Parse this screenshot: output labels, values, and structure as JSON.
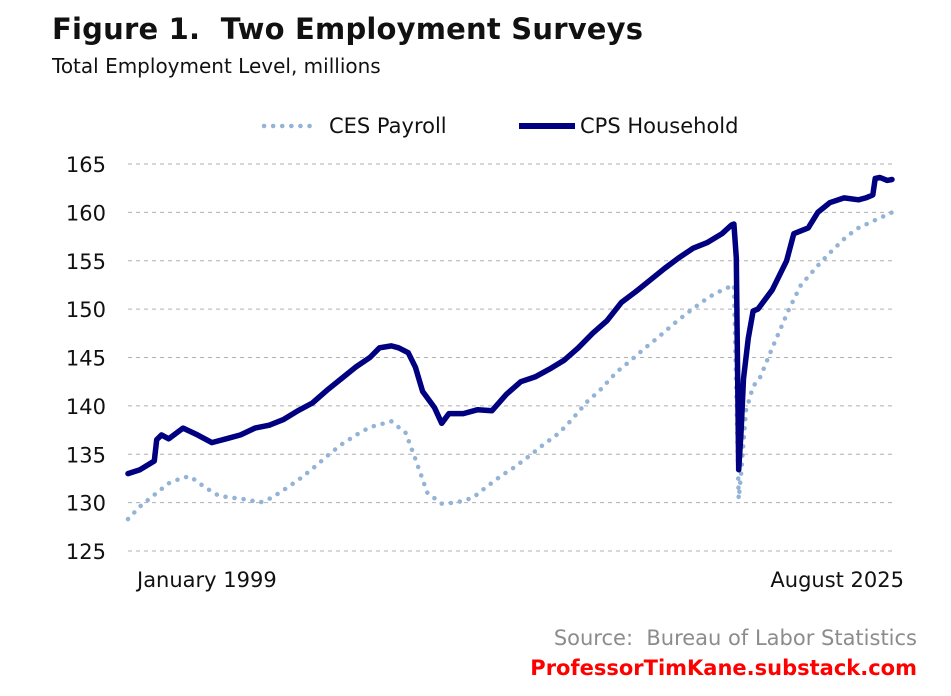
{
  "header": {
    "title": "Figure 1.  Two Employment Surveys",
    "subtitle": "Total Employment Level, millions"
  },
  "footer": {
    "source": "Source:  Bureau of Labor Statistics",
    "brand": "ProfessorTimKane.substack.com"
  },
  "colors": {
    "ces": "#93b3d7",
    "cps": "#000080",
    "grid": "#b0b0b0",
    "brand": "#ff0000",
    "source": "#8c8c8c"
  },
  "chart_data": {
    "type": "line",
    "title": "Figure 1.  Two Employment Surveys",
    "subtitle": "Total Employment Level, millions",
    "x_labels": {
      "start": "January 1999",
      "end": "August 2025"
    },
    "x_range": [
      "1999-01",
      "2025-08"
    ],
    "ylim": [
      125,
      165
    ],
    "yticks": [
      125,
      130,
      135,
      140,
      145,
      150,
      155,
      160,
      165
    ],
    "grid": "horizontal dashed",
    "legend_position": "top-center",
    "series": [
      {
        "name": "CES Payroll",
        "style": "dotted",
        "points": [
          [
            "1999-01",
            128.3
          ],
          [
            "1999-06",
            129.6
          ],
          [
            "2000-01",
            131.0
          ],
          [
            "2000-06",
            132.0
          ],
          [
            "2000-12",
            132.6
          ],
          [
            "2001-03",
            132.7
          ],
          [
            "2001-09",
            131.6
          ],
          [
            "2002-03",
            130.7
          ],
          [
            "2002-09",
            130.5
          ],
          [
            "2003-03",
            130.3
          ],
          [
            "2003-08",
            130.0
          ],
          [
            "2004-01",
            130.5
          ],
          [
            "2004-06",
            131.3
          ],
          [
            "2005-01",
            132.5
          ],
          [
            "2005-06",
            133.5
          ],
          [
            "2006-01",
            135.0
          ],
          [
            "2006-06",
            136.0
          ],
          [
            "2007-01",
            137.1
          ],
          [
            "2007-06",
            137.8
          ],
          [
            "2007-12",
            138.2
          ],
          [
            "2008-03",
            138.4
          ],
          [
            "2008-09",
            137.2
          ],
          [
            "2009-01",
            134.5
          ],
          [
            "2009-06",
            131.0
          ],
          [
            "2009-12",
            129.9
          ],
          [
            "2010-06",
            130.0
          ],
          [
            "2011-01",
            130.5
          ],
          [
            "2011-06",
            131.5
          ],
          [
            "2012-01",
            132.8
          ],
          [
            "2012-06",
            133.6
          ],
          [
            "2013-01",
            134.9
          ],
          [
            "2013-06",
            135.9
          ],
          [
            "2014-01",
            137.2
          ],
          [
            "2014-06",
            138.5
          ],
          [
            "2015-01",
            140.5
          ],
          [
            "2015-06",
            141.6
          ],
          [
            "2016-01",
            143.5
          ],
          [
            "2016-06",
            144.5
          ],
          [
            "2017-01",
            146.0
          ],
          [
            "2017-06",
            147.0
          ],
          [
            "2018-01",
            148.5
          ],
          [
            "2018-06",
            149.5
          ],
          [
            "2019-01",
            150.8
          ],
          [
            "2019-06",
            151.6
          ],
          [
            "2020-02",
            152.5
          ],
          [
            "2020-04",
            130.4
          ],
          [
            "2020-05",
            133.0
          ],
          [
            "2020-07",
            139.5
          ],
          [
            "2020-10",
            142.0
          ],
          [
            "2021-01",
            143.0
          ],
          [
            "2021-06",
            146.0
          ],
          [
            "2022-01",
            150.0
          ],
          [
            "2022-06",
            152.5
          ],
          [
            "2023-01",
            154.5
          ],
          [
            "2023-06",
            155.8
          ],
          [
            "2024-01",
            157.5
          ],
          [
            "2024-06",
            158.4
          ],
          [
            "2025-01",
            159.2
          ],
          [
            "2025-08",
            160.0
          ]
        ]
      },
      {
        "name": "CPS Household",
        "style": "solid",
        "points": [
          [
            "1999-01",
            133.0
          ],
          [
            "1999-06",
            133.4
          ],
          [
            "1999-12",
            134.3
          ],
          [
            "2000-01",
            136.5
          ],
          [
            "2000-03",
            137.0
          ],
          [
            "2000-06",
            136.6
          ],
          [
            "2000-12",
            137.7
          ],
          [
            "2001-06",
            137.0
          ],
          [
            "2001-12",
            136.2
          ],
          [
            "2002-06",
            136.6
          ],
          [
            "2002-12",
            137.0
          ],
          [
            "2003-06",
            137.7
          ],
          [
            "2003-12",
            138.0
          ],
          [
            "2004-06",
            138.6
          ],
          [
            "2004-12",
            139.5
          ],
          [
            "2005-06",
            140.3
          ],
          [
            "2005-12",
            141.6
          ],
          [
            "2006-06",
            142.8
          ],
          [
            "2006-12",
            144.0
          ],
          [
            "2007-06",
            145.0
          ],
          [
            "2007-10",
            146.0
          ],
          [
            "2008-03",
            146.2
          ],
          [
            "2008-06",
            146.0
          ],
          [
            "2008-10",
            145.5
          ],
          [
            "2009-01",
            144.0
          ],
          [
            "2009-04",
            141.5
          ],
          [
            "2009-09",
            139.8
          ],
          [
            "2009-12",
            138.2
          ],
          [
            "2010-03",
            139.2
          ],
          [
            "2010-09",
            139.2
          ],
          [
            "2011-03",
            139.6
          ],
          [
            "2011-09",
            139.5
          ],
          [
            "2012-03",
            141.2
          ],
          [
            "2012-09",
            142.5
          ],
          [
            "2013-03",
            143.0
          ],
          [
            "2013-09",
            143.8
          ],
          [
            "2014-03",
            144.7
          ],
          [
            "2014-09",
            146.0
          ],
          [
            "2015-03",
            147.5
          ],
          [
            "2015-09",
            148.8
          ],
          [
            "2016-03",
            150.7
          ],
          [
            "2016-09",
            151.8
          ],
          [
            "2017-03",
            153.0
          ],
          [
            "2017-09",
            154.2
          ],
          [
            "2018-03",
            155.3
          ],
          [
            "2018-09",
            156.3
          ],
          [
            "2019-03",
            156.9
          ],
          [
            "2019-09",
            157.8
          ],
          [
            "2020-01",
            158.7
          ],
          [
            "2020-02",
            158.8
          ],
          [
            "2020-03",
            155.3
          ],
          [
            "2020-04",
            133.4
          ],
          [
            "2020-05",
            137.4
          ],
          [
            "2020-06",
            142.8
          ],
          [
            "2020-08",
            147.0
          ],
          [
            "2020-10",
            149.8
          ],
          [
            "2020-12",
            150.0
          ],
          [
            "2021-06",
            152.0
          ],
          [
            "2021-12",
            155.0
          ],
          [
            "2022-03",
            157.8
          ],
          [
            "2022-09",
            158.4
          ],
          [
            "2023-01",
            160.0
          ],
          [
            "2023-06",
            161.0
          ],
          [
            "2023-12",
            161.5
          ],
          [
            "2024-06",
            161.3
          ],
          [
            "2024-09",
            161.5
          ],
          [
            "2024-12",
            161.8
          ],
          [
            "2025-01",
            163.5
          ],
          [
            "2025-03",
            163.6
          ],
          [
            "2025-06",
            163.3
          ],
          [
            "2025-08",
            163.4
          ]
        ]
      }
    ]
  }
}
